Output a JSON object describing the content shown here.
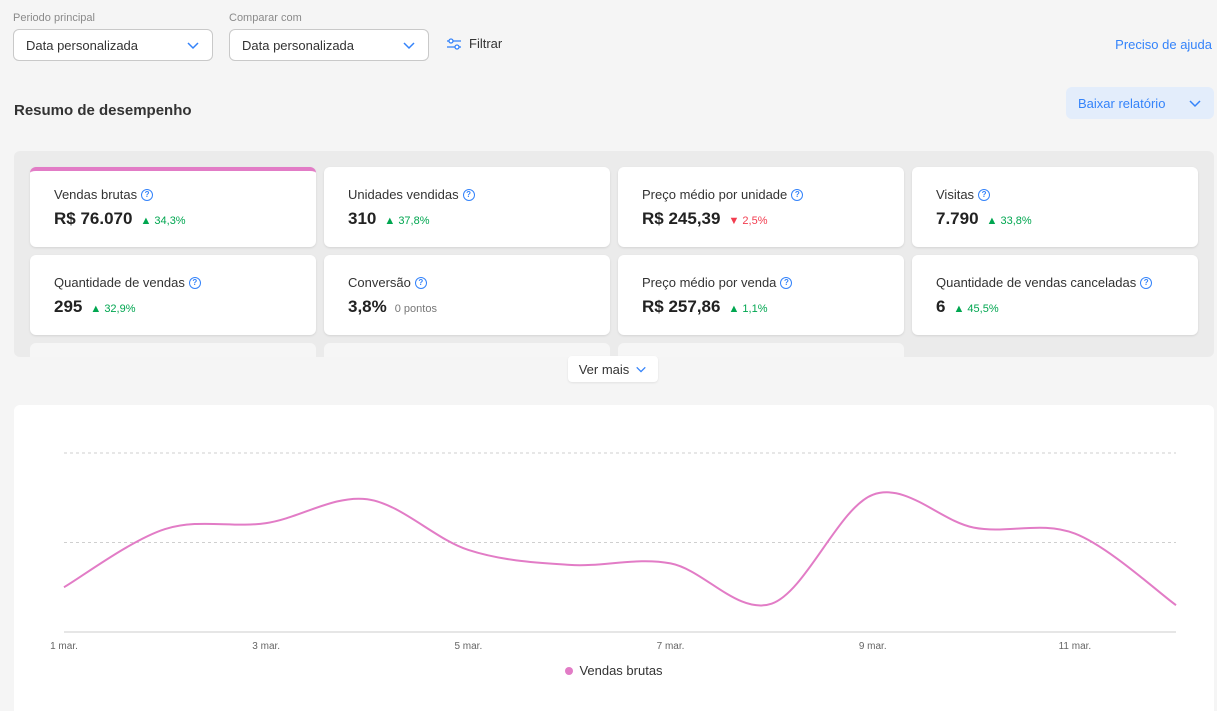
{
  "filters": {
    "period_label": "Periodo principal",
    "period_value": "Data personalizada",
    "compare_label": "Comparar com",
    "compare_value": "Data personalizada",
    "filter_label": "Filtrar",
    "help_label": "Preciso de ajuda"
  },
  "summary": {
    "title": "Resumo de desempenho",
    "download_label": "Baixar relatório",
    "ver_mais": "Ver mais"
  },
  "metrics": [
    {
      "title": "Vendas brutas",
      "value": "R$ 76.070",
      "delta": "▲ 34,3%",
      "trend": "up",
      "selected": true
    },
    {
      "title": "Unidades vendidas",
      "value": "310",
      "delta": "▲ 37,8%",
      "trend": "up"
    },
    {
      "title": "Preço médio por unidade",
      "value": "R$ 245,39",
      "delta": "▼ 2,5%",
      "trend": "down"
    },
    {
      "title": "Visitas",
      "value": "7.790",
      "delta": "▲ 33,8%",
      "trend": "up"
    },
    {
      "title": "Quantidade de vendas",
      "value": "295",
      "delta": "▲ 32,9%",
      "trend": "up"
    },
    {
      "title": "Conversão",
      "value": "3,8%",
      "delta": "0 pontos",
      "trend": "neutral"
    },
    {
      "title": "Preço médio por venda",
      "value": "R$ 257,86",
      "delta": "▲ 1,1%",
      "trend": "up"
    },
    {
      "title": "Quantidade de vendas canceladas",
      "value": "6",
      "delta": "▲ 45,5%",
      "trend": "up"
    }
  ],
  "colors": {
    "series": "#e27cc6",
    "accent": "#3483fa",
    "up": "#00a650",
    "down": "#f23d4f"
  },
  "chart_data": {
    "type": "line",
    "x": [
      "1 mar.",
      "2 mar.",
      "3 mar.",
      "4 mar.",
      "5 mar.",
      "6 mar.",
      "7 mar.",
      "8 mar.",
      "9 mar.",
      "10 mar.",
      "11 mar.",
      "12 mar."
    ],
    "x_tick_labels": [
      "1 mar.",
      "3 mar.",
      "5 mar.",
      "7 mar.",
      "9 mar.",
      "11 mar."
    ],
    "series": [
      {
        "name": "Vendas brutas",
        "values": [
          0.3,
          0.69,
          0.73,
          0.89,
          0.55,
          0.45,
          0.46,
          0.19,
          0.92,
          0.7,
          0.66,
          0.18
        ]
      }
    ],
    "ylim": [
      0,
      1.2
    ],
    "y_gridlines": [
      0.6,
      1.2
    ],
    "y_tick_labels_visible": false,
    "grid": "dashed horizontal",
    "legend": "bottom-center",
    "curve": "smooth"
  }
}
